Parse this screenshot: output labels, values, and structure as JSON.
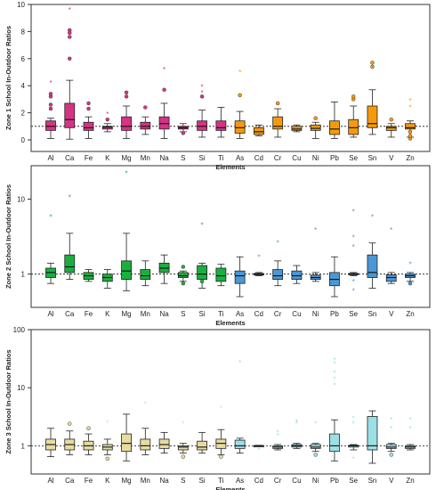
{
  "chart_data": [
    {
      "type": "box",
      "ylabel": "Zone 1 School In-Outdoor Ratios",
      "xlabel": "Elements",
      "yscale": "linear",
      "ylim": [
        0,
        10
      ],
      "yticks": [
        0,
        2,
        4,
        6,
        8,
        10
      ],
      "ytick_labels": [
        "0",
        "2",
        "4",
        "6",
        "8",
        "10"
      ],
      "reference_line": 1,
      "categories": [
        "Al",
        "Ca",
        "Fe",
        "K",
        "Mg",
        "Mn",
        "Na",
        "S",
        "Si",
        "Ti",
        "As",
        "Cd",
        "Cr",
        "Cu",
        "Ni",
        "Pb",
        "Se",
        "Sn",
        "V",
        "Zn"
      ],
      "colors": [
        "#d63384",
        "#d63384",
        "#d63384",
        "#d63384",
        "#d63384",
        "#d63384",
        "#d63384",
        "#d63384",
        "#d63384",
        "#d63384",
        "#f59a0c",
        "#f59a0c",
        "#f59a0c",
        "#f59a0c",
        "#f59a0c",
        "#f59a0c",
        "#f59a0c",
        "#f59a0c",
        "#f59a0c",
        "#f59a0c"
      ],
      "boxes": [
        {
          "min": 0.1,
          "q1": 0.7,
          "median": 1.0,
          "q3": 1.4,
          "max": 1.6,
          "outliers": [
            2.3,
            2.6,
            3.2,
            3.4,
            4.2
          ]
        },
        {
          "min": 0.05,
          "q1": 0.9,
          "median": 1.5,
          "q3": 2.7,
          "max": 4.4,
          "outliers": [
            6.0,
            7.6,
            7.9,
            8.1,
            9.6
          ]
        },
        {
          "min": 0.1,
          "q1": 0.7,
          "median": 0.9,
          "q3": 1.3,
          "max": 1.7,
          "outliers": [
            2.3,
            2.7
          ]
        },
        {
          "min": 0.6,
          "q1": 0.8,
          "median": 0.95,
          "q3": 1.0,
          "max": 1.2,
          "outliers": [
            1.5,
            1.9
          ]
        },
        {
          "min": 0.1,
          "q1": 0.7,
          "median": 1.0,
          "q3": 1.7,
          "max": 2.5,
          "outliers": [
            3.2,
            3.5
          ]
        },
        {
          "min": 0.4,
          "q1": 0.8,
          "median": 1.0,
          "q3": 1.3,
          "max": 1.7,
          "outliers": [
            2.4
          ]
        },
        {
          "min": 0.1,
          "q1": 0.8,
          "median": 1.2,
          "q3": 1.7,
          "max": 2.7,
          "outliers": [
            3.7,
            5.2
          ]
        },
        {
          "min": 0.6,
          "q1": 0.8,
          "median": 0.9,
          "q3": 1.0,
          "max": 1.2,
          "outliers": [
            0.5
          ]
        },
        {
          "min": 0.2,
          "q1": 0.7,
          "median": 1.0,
          "q3": 1.4,
          "max": 2.2,
          "outliers": [
            3.2,
            3.5,
            3.9
          ]
        },
        {
          "min": 0.2,
          "q1": 0.7,
          "median": 0.9,
          "q3": 1.4,
          "max": 2.4,
          "outliers": []
        },
        {
          "min": 0.1,
          "q1": 0.5,
          "median": 0.9,
          "q3": 1.4,
          "max": 2.1,
          "outliers": [
            3.3,
            5.0
          ]
        },
        {
          "min": 0.3,
          "q1": 0.4,
          "median": 0.6,
          "q3": 0.9,
          "max": 1.1,
          "outliers": []
        },
        {
          "min": 0.2,
          "q1": 0.8,
          "median": 1.0,
          "q3": 1.7,
          "max": 2.3,
          "outliers": [
            2.7
          ]
        },
        {
          "min": 0.6,
          "q1": 0.7,
          "median": 0.8,
          "q3": 1.0,
          "max": 1.1,
          "outliers": []
        },
        {
          "min": 0.1,
          "q1": 0.7,
          "median": 0.85,
          "q3": 1.1,
          "max": 1.3,
          "outliers": [
            1.6
          ]
        },
        {
          "min": 0.1,
          "q1": 0.4,
          "median": 0.8,
          "q3": 1.4,
          "max": 2.8,
          "outliers": []
        },
        {
          "min": 0.2,
          "q1": 0.4,
          "median": 0.9,
          "q3": 1.5,
          "max": 2.5,
          "outliers": [
            3.0,
            3.2
          ]
        },
        {
          "min": 0.4,
          "q1": 0.9,
          "median": 1.2,
          "q3": 2.5,
          "max": 3.7,
          "outliers": [
            5.4,
            5.7
          ]
        },
        {
          "min": 0.2,
          "q1": 0.7,
          "median": 0.9,
          "q3": 1.0,
          "max": 1.2,
          "outliers": [
            1.5
          ]
        },
        {
          "min": 0.2,
          "q1": 0.8,
          "median": 0.9,
          "q3": 1.2,
          "max": 1.4,
          "outliers": [
            0.1,
            0.3,
            0.6,
            2.4,
            2.9
          ]
        }
      ]
    },
    {
      "type": "box",
      "ylabel": "Zone 2 School In-Outdoor Ratios",
      "xlabel": "Elements",
      "yscale": "log",
      "ylim": [
        0.5,
        25
      ],
      "yticks": [
        1,
        10
      ],
      "ytick_labels": [
        "1",
        "10"
      ],
      "reference_line": 1,
      "categories": [
        "Al",
        "Ca",
        "Fe",
        "K",
        "Mg",
        "Mn",
        "Na",
        "S",
        "Si",
        "Ti",
        "As",
        "Cd",
        "Cr",
        "Cu",
        "Ni",
        "Pb",
        "Se",
        "Sn",
        "V",
        "Zn"
      ],
      "colors": [
        "#19b040",
        "#19b040",
        "#19b040",
        "#19b040",
        "#19b040",
        "#19b040",
        "#19b040",
        "#19b040",
        "#19b040",
        "#19b040",
        "#4a97d4",
        "#4a97d4",
        "#4a97d4",
        "#4a97d4",
        "#4a97d4",
        "#4a97d4",
        "#4a97d4",
        "#4a97d4",
        "#4a97d4",
        "#4a97d4"
      ],
      "boxes": [
        {
          "min": 0.75,
          "q1": 0.9,
          "median": 1.05,
          "q3": 1.2,
          "max": 1.4,
          "outliers": [
            5.8
          ]
        },
        {
          "min": 0.85,
          "q1": 1.05,
          "median": 1.25,
          "q3": 1.8,
          "max": 3.5,
          "outliers": [
            10.5
          ]
        },
        {
          "min": 0.8,
          "q1": 0.85,
          "median": 0.95,
          "q3": 1.05,
          "max": 1.15,
          "outliers": []
        },
        {
          "min": 0.65,
          "q1": 0.8,
          "median": 0.9,
          "q3": 1.0,
          "max": 1.15,
          "outliers": []
        },
        {
          "min": 0.6,
          "q1": 0.85,
          "median": 1.1,
          "q3": 1.5,
          "max": 3.5,
          "outliers": [
            22
          ]
        },
        {
          "min": 0.7,
          "q1": 0.85,
          "median": 0.95,
          "q3": 1.15,
          "max": 1.5,
          "outliers": []
        },
        {
          "min": 0.75,
          "q1": 1.05,
          "median": 1.2,
          "q3": 1.4,
          "max": 1.8,
          "outliers": []
        },
        {
          "min": 0.8,
          "q1": 0.9,
          "median": 0.95,
          "q3": 1.05,
          "max": 1.1,
          "outliers": [
            0.75,
            1.25
          ]
        },
        {
          "min": 0.65,
          "q1": 0.85,
          "median": 1.0,
          "q3": 1.3,
          "max": 1.4,
          "outliers": [
            0.8,
            4.5
          ]
        },
        {
          "min": 0.7,
          "q1": 0.8,
          "median": 0.95,
          "q3": 1.2,
          "max": 1.35,
          "outliers": []
        },
        {
          "min": 0.5,
          "q1": 0.75,
          "median": 0.95,
          "q3": 1.1,
          "max": 1.7,
          "outliers": []
        },
        {
          "min": 0.95,
          "q1": 0.97,
          "median": 1.0,
          "q3": 1.02,
          "max": 1.05,
          "outliers": [
            1.7
          ]
        },
        {
          "min": 0.7,
          "q1": 0.85,
          "median": 0.95,
          "q3": 1.15,
          "max": 1.5,
          "outliers": [
            2.6
          ]
        },
        {
          "min": 0.75,
          "q1": 0.85,
          "median": 0.95,
          "q3": 1.1,
          "max": 1.3,
          "outliers": []
        },
        {
          "min": 0.8,
          "q1": 0.85,
          "median": 0.9,
          "q3": 0.97,
          "max": 1.05,
          "outliers": [
            3.9
          ]
        },
        {
          "min": 0.5,
          "q1": 0.7,
          "median": 0.85,
          "q3": 1.05,
          "max": 1.7,
          "outliers": []
        },
        {
          "min": 0.95,
          "q1": 0.98,
          "median": 1.0,
          "q3": 1.02,
          "max": 1.05,
          "outliers": [
            0.6,
            0.8,
            2.3,
            3.1,
            6.8
          ]
        },
        {
          "min": 0.65,
          "q1": 0.9,
          "median": 1.05,
          "q3": 1.8,
          "max": 2.6,
          "outliers": [
            5.8
          ]
        },
        {
          "min": 0.75,
          "q1": 0.8,
          "median": 0.9,
          "q3": 0.98,
          "max": 1.05,
          "outliers": [
            3.9
          ]
        },
        {
          "min": 0.8,
          "q1": 0.9,
          "median": 0.95,
          "q3": 1.0,
          "max": 1.05,
          "outliers": [
            0.75,
            1.35
          ]
        }
      ]
    },
    {
      "type": "box",
      "ylabel": "Zone 3 School In-Outdoor Ratios",
      "xlabel": "Elements",
      "yscale": "log",
      "ylim": [
        0.5,
        100
      ],
      "yticks": [
        1,
        10,
        100
      ],
      "ytick_labels": [
        "1",
        "10",
        "100"
      ],
      "reference_line": 1,
      "categories": [
        "Al",
        "Ca",
        "Fe",
        "K",
        "Mg",
        "Mn",
        "Na",
        "S",
        "Si",
        "Ti",
        "As",
        "Cd",
        "Cr",
        "Cu",
        "Ni",
        "Pb",
        "Se",
        "Sn",
        "V",
        "Zn"
      ],
      "colors": [
        "#e6dca0",
        "#e6dca0",
        "#e6dca0",
        "#e6dca0",
        "#e6dca0",
        "#e6dca0",
        "#e6dca0",
        "#e6dca0",
        "#e6dca0",
        "#e6dca0",
        "#9cdfe6",
        "#9cdfe6",
        "#9cdfe6",
        "#9cdfe6",
        "#9cdfe6",
        "#9cdfe6",
        "#9cdfe6",
        "#9cdfe6",
        "#9cdfe6",
        "#9cdfe6"
      ],
      "boxes": [
        {
          "min": 0.65,
          "q1": 0.85,
          "median": 1.05,
          "q3": 1.3,
          "max": 2.0,
          "outliers": []
        },
        {
          "min": 0.7,
          "q1": 0.85,
          "median": 1.05,
          "q3": 1.3,
          "max": 1.8,
          "outliers": [
            2.4
          ]
        },
        {
          "min": 0.7,
          "q1": 0.85,
          "median": 1.0,
          "q3": 1.2,
          "max": 1.6,
          "outliers": [
            2.0
          ]
        },
        {
          "min": 0.7,
          "q1": 0.85,
          "median": 0.95,
          "q3": 1.05,
          "max": 1.3,
          "outliers": [
            0.6,
            2.5
          ]
        },
        {
          "min": 0.55,
          "q1": 0.8,
          "median": 1.1,
          "q3": 1.6,
          "max": 3.5,
          "outliers": []
        },
        {
          "min": 0.7,
          "q1": 0.85,
          "median": 1.0,
          "q3": 1.3,
          "max": 2.0,
          "outliers": [
            5.2
          ]
        },
        {
          "min": 0.75,
          "q1": 0.9,
          "median": 1.05,
          "q3": 1.3,
          "max": 1.7,
          "outliers": []
        },
        {
          "min": 0.75,
          "q1": 0.85,
          "median": 0.95,
          "q3": 1.0,
          "max": 1.1,
          "outliers": [
            0.65,
            2.4
          ]
        },
        {
          "min": 0.75,
          "q1": 0.85,
          "median": 0.95,
          "q3": 1.2,
          "max": 1.7,
          "outliers": []
        },
        {
          "min": 0.7,
          "q1": 0.9,
          "median": 1.1,
          "q3": 1.3,
          "max": 1.9,
          "outliers": [
            0.65,
            4.5
          ]
        },
        {
          "min": 0.75,
          "q1": 0.9,
          "median": 1.0,
          "q3": 1.25,
          "max": 1.35,
          "outliers": [
            27
          ]
        },
        {
          "min": 0.98,
          "q1": 0.99,
          "median": 1.0,
          "q3": 1.01,
          "max": 1.02,
          "outliers": [
            0.85
          ]
        },
        {
          "min": 0.85,
          "q1": 0.9,
          "median": 0.95,
          "q3": 1.0,
          "max": 1.05,
          "outliers": [
            1.5,
            1.7
          ]
        },
        {
          "min": 0.9,
          "q1": 0.95,
          "median": 1.0,
          "q3": 1.05,
          "max": 1.1,
          "outliers": [
            2.4,
            2.6
          ]
        },
        {
          "min": 0.8,
          "q1": 0.9,
          "median": 0.95,
          "q3": 1.05,
          "max": 1.1,
          "outliers": [
            0.7,
            2.4
          ]
        },
        {
          "min": 0.55,
          "q1": 0.8,
          "median": 1.0,
          "q3": 1.6,
          "max": 2.8,
          "outliers": [
            11,
            14,
            18,
            26,
            30
          ]
        },
        {
          "min": 0.85,
          "q1": 0.95,
          "median": 1.0,
          "q3": 1.02,
          "max": 1.05,
          "outliers": [
            0.6,
            2.4,
            3.0
          ]
        },
        {
          "min": 0.5,
          "q1": 0.85,
          "median": 1.0,
          "q3": 3.2,
          "max": 4.0,
          "outliers": []
        },
        {
          "min": 0.8,
          "q1": 0.9,
          "median": 0.95,
          "q3": 1.05,
          "max": 1.1,
          "outliers": [
            0.7,
            2.0,
            2.8
          ]
        },
        {
          "min": 0.85,
          "q1": 0.9,
          "median": 0.95,
          "q3": 1.0,
          "max": 1.05,
          "outliers": [
            2.0,
            2.8
          ]
        }
      ]
    }
  ]
}
